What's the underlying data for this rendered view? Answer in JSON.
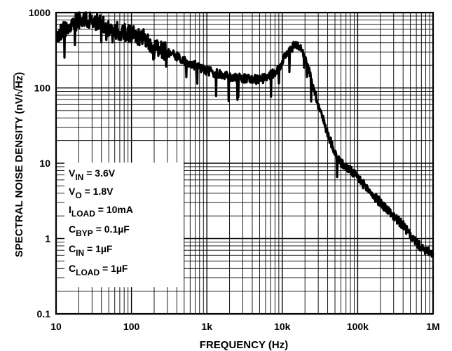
{
  "chart_data": {
    "type": "line",
    "xlabel": "FREQUENCY (Hz)",
    "ylabel_prefix": "SPECTRAL NOISE DENSITY (nV/",
    "ylabel_radical": "√",
    "ylabel_radicand": "Hz",
    "ylabel_suffix": ")",
    "x_scale": "log",
    "y_scale": "log",
    "xlim": [
      10,
      1000000
    ],
    "ylim": [
      0.1,
      1000
    ],
    "grid": true,
    "x_ticks": [
      {
        "value": 10,
        "label": "10"
      },
      {
        "value": 100,
        "label": "100"
      },
      {
        "value": 1000,
        "label": "1k"
      },
      {
        "value": 10000,
        "label": "10k"
      },
      {
        "value": 100000,
        "label": "100k"
      },
      {
        "value": 1000000,
        "label": "1M"
      }
    ],
    "y_ticks": [
      {
        "value": 0.1,
        "label": "0.1"
      },
      {
        "value": 1,
        "label": "1"
      },
      {
        "value": 10,
        "label": "10"
      },
      {
        "value": 100,
        "label": "100"
      },
      {
        "value": 1000,
        "label": "1000"
      }
    ],
    "legend_box": {
      "placement": "lower-left",
      "lines": [
        {
          "main": "V",
          "sub": "IN",
          "rest": " = 3.6V"
        },
        {
          "main": "V",
          "sub": "O",
          "rest": " = 1.8V"
        },
        {
          "main": "I",
          "sub": "LOAD",
          "rest": " = 10mA"
        },
        {
          "main": "C",
          "sub": "BYP",
          "rest": " = 0.1µF"
        },
        {
          "main": "C",
          "sub": "IN",
          "rest": " = 1µF"
        },
        {
          "main": "C",
          "sub": "LOAD",
          "rest": " = 1µF"
        }
      ]
    },
    "series": [
      {
        "color": "#000000",
        "x": [
          10,
          12,
          15,
          20,
          25,
          30,
          40,
          50,
          60,
          80,
          100,
          150,
          200,
          300,
          400,
          500,
          700,
          1000,
          1500,
          2000,
          3000,
          4000,
          5000,
          6000,
          7000,
          8000,
          9000,
          10000,
          12000,
          15000,
          18000,
          20000,
          25000,
          30000,
          40000,
          50000,
          60000,
          70000,
          80000,
          100000,
          150000,
          200000,
          300000,
          400000,
          500000,
          600000,
          700000,
          800000,
          900000,
          1000000
        ],
        "y": [
          450,
          550,
          650,
          800,
          850,
          780,
          700,
          600,
          580,
          550,
          520,
          450,
          350,
          300,
          260,
          230,
          200,
          170,
          150,
          140,
          135,
          130,
          130,
          135,
          150,
          160,
          180,
          230,
          300,
          380,
          350,
          250,
          120,
          60,
          25,
          14,
          10,
          9,
          8,
          6.5,
          4,
          3,
          2,
          1.5,
          1.1,
          0.9,
          0.75,
          0.7,
          0.65,
          0.6
        ]
      }
    ]
  }
}
